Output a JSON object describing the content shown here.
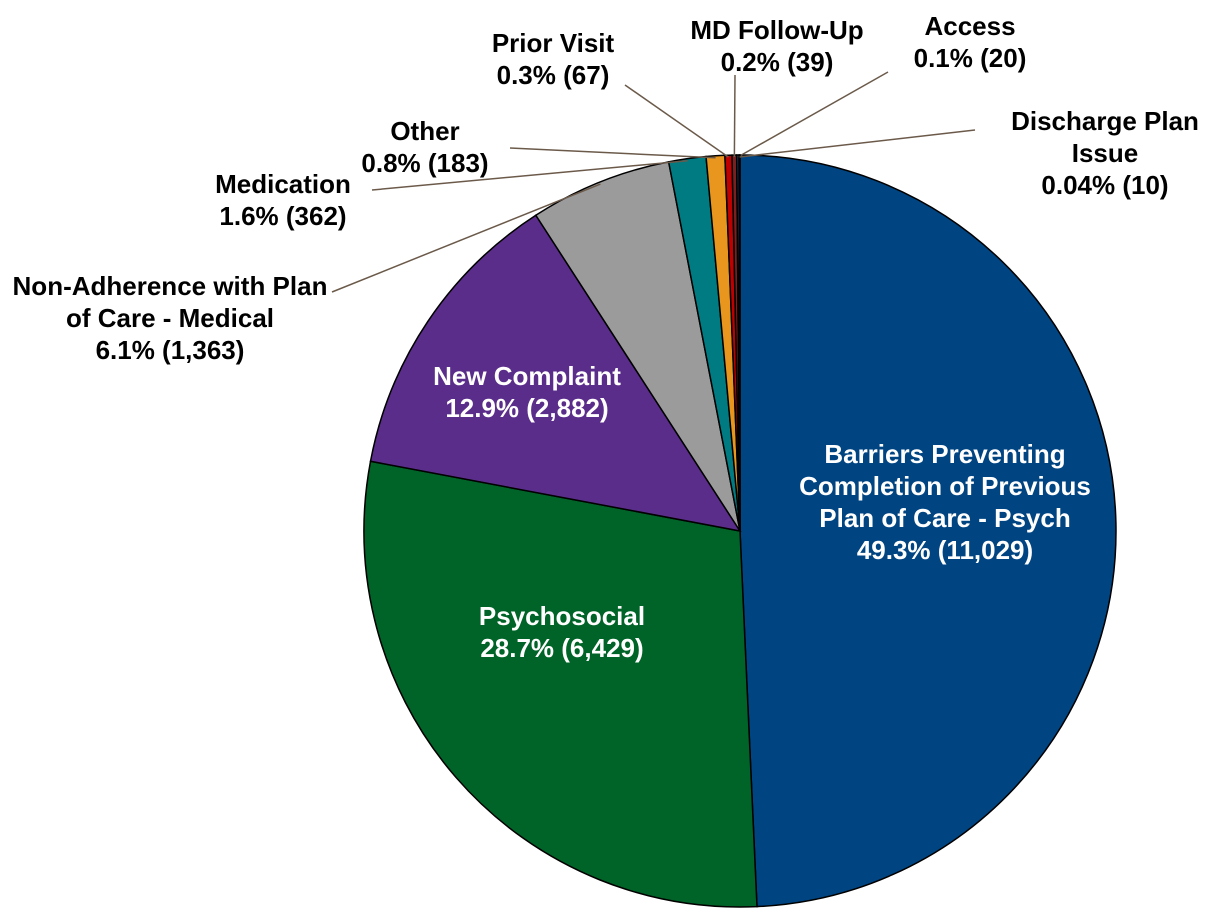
{
  "chart_data": {
    "type": "pie",
    "categories": [
      "Barriers Preventing Completion of Previous Plan of Care - Psych",
      "Psychosocial",
      "New Complaint",
      "Non-Adherence with Plan of Care - Medical",
      "Medication",
      "Other",
      "Prior Visit",
      "MD Follow-Up",
      "Access",
      "Discharge Plan Issue"
    ],
    "values": [
      49.3,
      28.7,
      12.9,
      6.1,
      1.6,
      0.8,
      0.3,
      0.2,
      0.1,
      0.04
    ],
    "value_labels": [
      "49.3% (11,029)",
      "28.7% (6,429)",
      "12.9% (2,882)",
      "6.1% (1,363)",
      "1.6% (362)",
      "0.8% (183)",
      "0.3% (67)",
      "0.2% (39)",
      "0.1% (20)",
      "0.04% (10)"
    ],
    "colors": [
      "#004481",
      "#006327",
      "#5a2d8a",
      "#9b9b9b",
      "#007b82",
      "#e8961e",
      "#c00000",
      "#7b1f1f",
      "#1f3f7b",
      "#3a3a3a"
    ]
  }
}
